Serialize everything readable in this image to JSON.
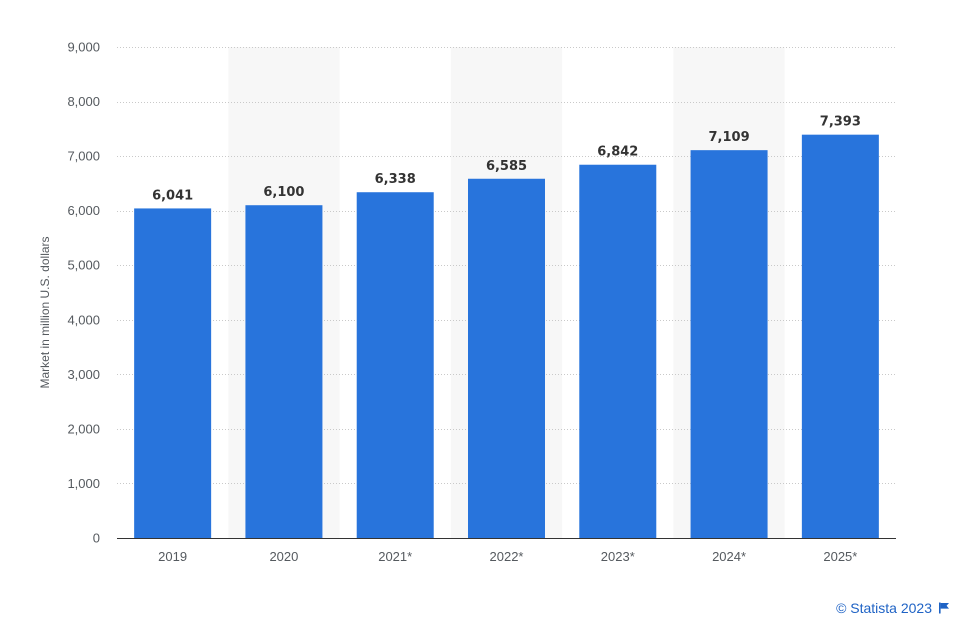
{
  "chart_data": {
    "type": "bar",
    "categories": [
      "2019",
      "2020",
      "2021*",
      "2022*",
      "2023*",
      "2024*",
      "2025*"
    ],
    "values": [
      6041,
      6100,
      6338,
      6585,
      6842,
      7109,
      7393
    ],
    "data_labels": [
      "6,041",
      "6,100",
      "6,338",
      "6,585",
      "6,842",
      "7,109",
      "7,393"
    ],
    "title": "",
    "xlabel": "",
    "ylabel": "Market in million U.S. dollars",
    "ylim": [
      0,
      9000
    ],
    "yticks": [
      0,
      1000,
      2000,
      3000,
      4000,
      5000,
      6000,
      7000,
      8000,
      9000
    ],
    "ytick_labels": [
      "0",
      "1,000",
      "2,000",
      "3,000",
      "4,000",
      "5,000",
      "6,000",
      "7,000",
      "8,000",
      "9,000"
    ],
    "grid": true,
    "legend": "none",
    "bar_color": "#2874dc",
    "band_color": "#f7f7f7"
  },
  "credit": {
    "text": "© Statista 2023",
    "icon": "flag-icon",
    "color": "#1f63c5"
  }
}
